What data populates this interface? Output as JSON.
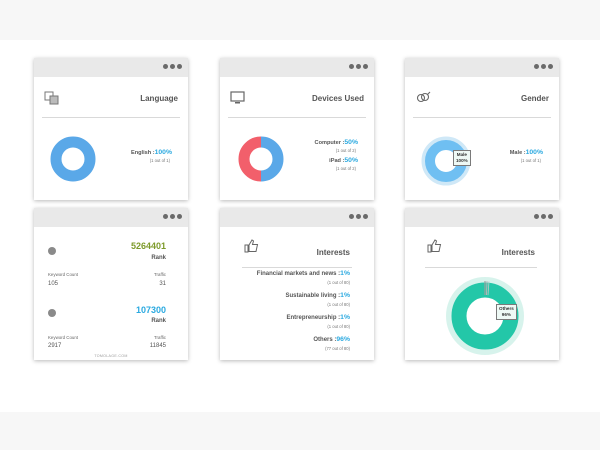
{
  "cards": {
    "language": {
      "title": "Language",
      "icon": "translate-icon",
      "items": [
        {
          "label": "English :",
          "pct": "100%",
          "sub": "(1 out of 1)"
        }
      ],
      "color": "#5aa8e8"
    },
    "devices": {
      "title": "Devices Used",
      "icon": "monitor-icon",
      "items": [
        {
          "label": "Computer :",
          "pct": "50%",
          "sub": "(1 out of 2)"
        },
        {
          "label": "iPad :",
          "pct": "50%",
          "sub": "(1 out of 2)"
        }
      ],
      "colors": [
        "#5aa8e8",
        "#f25f6b"
      ]
    },
    "gender": {
      "title": "Gender",
      "icon": "gender-icon",
      "items": [
        {
          "label": "Male :",
          "pct": "100%",
          "sub": "(1 out of 1)"
        }
      ],
      "callout_line1": "Male",
      "callout_line2": "100%",
      "colors": [
        "#6fbff2",
        "#cfe8f7"
      ]
    },
    "rank": {
      "sites": [
        {
          "rank": "5264401",
          "rank_label": "Rank",
          "rank_color": "#7d9a2a",
          "kw_head": "Keyword Count",
          "kw_val": "105",
          "traffic_head": "Traffic",
          "traffic_val": "31"
        },
        {
          "rank": "107300",
          "rank_label": "Rank",
          "rank_color": "#2aa9e0",
          "kw_head": "Keyword Count",
          "kw_val": "2917",
          "traffic_head": "Traffic",
          "traffic_val": "11845"
        }
      ],
      "footer": "TOMOLAGE.COM"
    },
    "interests_list": {
      "title": "Interests",
      "icon": "thumbs-up-icon",
      "items": [
        {
          "label": "Financial markets and news :",
          "pct": "1%",
          "sub": "(1 out of 80)"
        },
        {
          "label": "Sustainable living :",
          "pct": "1%",
          "sub": "(1 out of 80)"
        },
        {
          "label": "Entrepreneurship :",
          "pct": "1%",
          "sub": "(1 out of 80)"
        },
        {
          "label": "Others :",
          "pct": "96%",
          "sub": "(77 out of 80)"
        }
      ]
    },
    "interests_chart": {
      "title": "Interests",
      "icon": "thumbs-up-icon",
      "callout_line1": "Others",
      "callout_line2": "96%",
      "colors": [
        "#23c7a8",
        "#d7f3ec",
        "#9aa0a0"
      ]
    }
  }
}
